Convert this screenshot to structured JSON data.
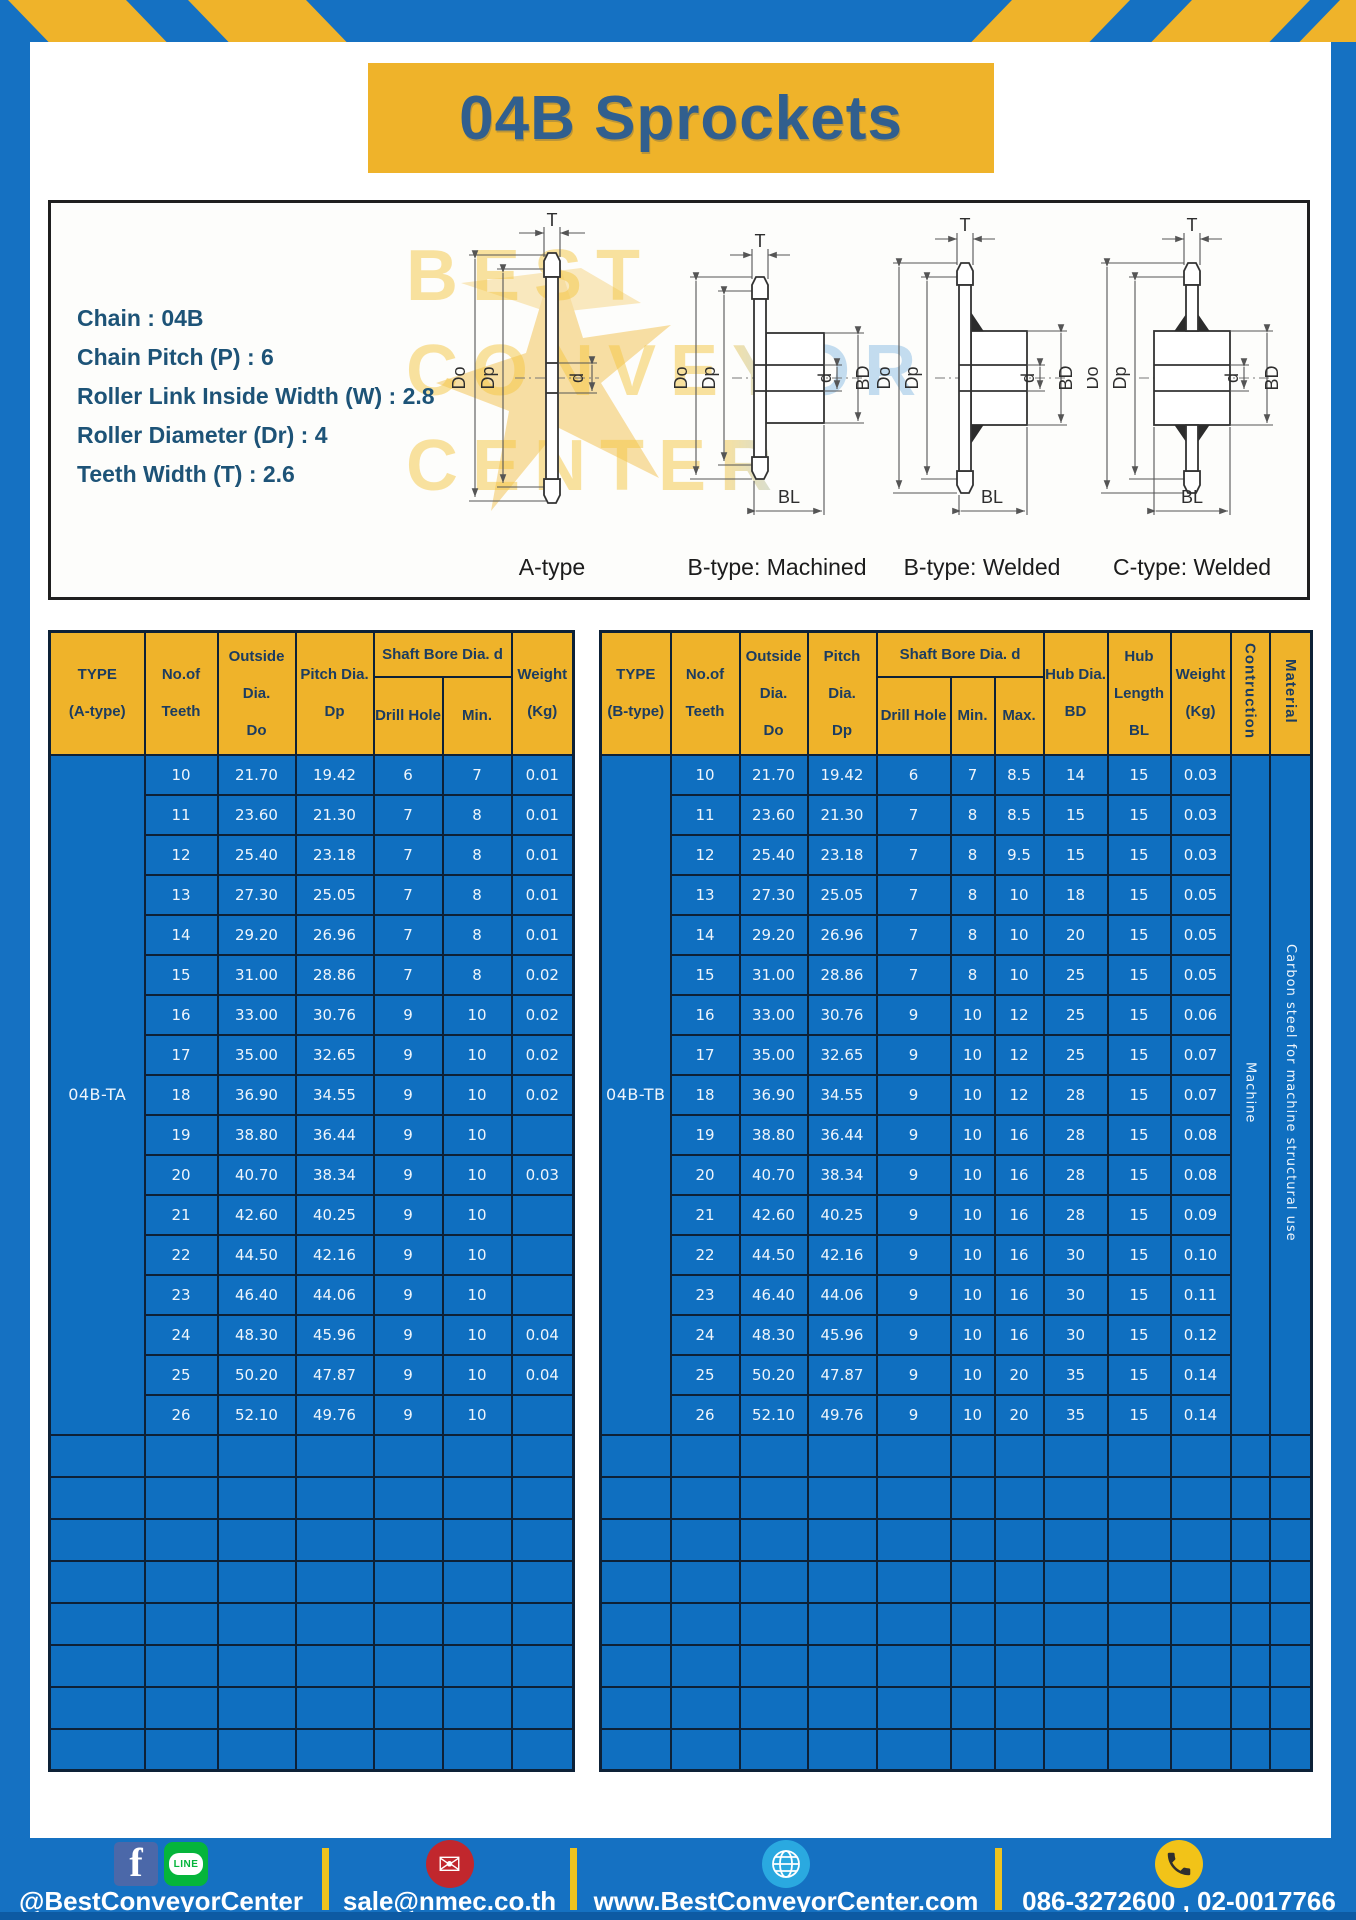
{
  "title": "04B Sprockets",
  "specs": [
    "Chain  :  04B",
    "Chain Pitch (P)  :  6",
    "Roller Link Inside Width (W)  :  2.8",
    "Roller Diameter (Dr)  :  4",
    "Teeth Width (T)  :  2.6"
  ],
  "diagrams": {
    "watermark_lines": [
      "BEST",
      "CONVEYOR",
      "CENTER"
    ],
    "captions": [
      "A-type",
      "B-type: Machined",
      "B-type: Welded",
      "C-type: Welded"
    ],
    "dim_labels": {
      "t": "T",
      "outer": "Do",
      "pitch": "Dp",
      "bore": "d",
      "hub": "BD",
      "hub_len": "BL"
    }
  },
  "table_a": {
    "header": {
      "type": [
        "TYPE",
        "(A-type)"
      ],
      "teeth": [
        "No.of",
        "Teeth"
      ],
      "outside": [
        "Outside",
        "Dia.",
        "Do"
      ],
      "pitch": [
        "Pitch Dia.",
        "Dp"
      ],
      "shaft_bore": "Shaft Bore Dia. d",
      "drill": "Drill Hole",
      "min": "Min.",
      "weight": [
        "Weight",
        "(Kg)"
      ]
    },
    "type_label": "04B-TA",
    "rows": [
      [
        "10",
        "21.70",
        "19.42",
        "6",
        "7",
        "0.01"
      ],
      [
        "11",
        "23.60",
        "21.30",
        "7",
        "8",
        "0.01"
      ],
      [
        "12",
        "25.40",
        "23.18",
        "7",
        "8",
        "0.01"
      ],
      [
        "13",
        "27.30",
        "25.05",
        "7",
        "8",
        "0.01"
      ],
      [
        "14",
        "29.20",
        "26.96",
        "7",
        "8",
        "0.01"
      ],
      [
        "15",
        "31.00",
        "28.86",
        "7",
        "8",
        "0.02"
      ],
      [
        "16",
        "33.00",
        "30.76",
        "9",
        "10",
        "0.02"
      ],
      [
        "17",
        "35.00",
        "32.65",
        "9",
        "10",
        "0.02"
      ],
      [
        "18",
        "36.90",
        "34.55",
        "9",
        "10",
        "0.02"
      ],
      [
        "19",
        "38.80",
        "36.44",
        "9",
        "10",
        ""
      ],
      [
        "20",
        "40.70",
        "38.34",
        "9",
        "10",
        "0.03"
      ],
      [
        "21",
        "42.60",
        "40.25",
        "9",
        "10",
        ""
      ],
      [
        "22",
        "44.50",
        "42.16",
        "9",
        "10",
        ""
      ],
      [
        "23",
        "46.40",
        "44.06",
        "9",
        "10",
        ""
      ],
      [
        "24",
        "48.30",
        "45.96",
        "9",
        "10",
        "0.04"
      ],
      [
        "25",
        "50.20",
        "47.87",
        "9",
        "10",
        "0.04"
      ],
      [
        "26",
        "52.10",
        "49.76",
        "9",
        "10",
        ""
      ]
    ],
    "empty_rows": 8
  },
  "table_b": {
    "header": {
      "type": [
        "TYPE",
        "(B-type)"
      ],
      "teeth": [
        "No.of",
        "Teeth"
      ],
      "outside": [
        "Outside",
        "Dia.",
        "Do"
      ],
      "pitch": [
        "Pitch Dia.",
        "Dp"
      ],
      "shaft_bore": "Shaft Bore Dia. d",
      "drill": "Drill Hole",
      "min": "Min.",
      "max": "Max.",
      "hub_dia": [
        "Hub Dia.",
        "BD"
      ],
      "hub_len": [
        "Hub",
        "Length",
        "BL"
      ],
      "weight": [
        "Weight",
        "(Kg)"
      ],
      "construction": "Contruction",
      "material": "Material"
    },
    "type_label": "04B-TB",
    "construction_value": "Machine",
    "material_value": "Carbon steel for machine structural use",
    "rows": [
      [
        "10",
        "21.70",
        "19.42",
        "6",
        "7",
        "8.5",
        "14",
        "15",
        "0.03"
      ],
      [
        "11",
        "23.60",
        "21.30",
        "7",
        "8",
        "8.5",
        "15",
        "15",
        "0.03"
      ],
      [
        "12",
        "25.40",
        "23.18",
        "7",
        "8",
        "9.5",
        "15",
        "15",
        "0.03"
      ],
      [
        "13",
        "27.30",
        "25.05",
        "7",
        "8",
        "10",
        "18",
        "15",
        "0.05"
      ],
      [
        "14",
        "29.20",
        "26.96",
        "7",
        "8",
        "10",
        "20",
        "15",
        "0.05"
      ],
      [
        "15",
        "31.00",
        "28.86",
        "7",
        "8",
        "10",
        "25",
        "15",
        "0.05"
      ],
      [
        "16",
        "33.00",
        "30.76",
        "9",
        "10",
        "12",
        "25",
        "15",
        "0.06"
      ],
      [
        "17",
        "35.00",
        "32.65",
        "9",
        "10",
        "12",
        "25",
        "15",
        "0.07"
      ],
      [
        "18",
        "36.90",
        "34.55",
        "9",
        "10",
        "12",
        "28",
        "15",
        "0.07"
      ],
      [
        "19",
        "38.80",
        "36.44",
        "9",
        "10",
        "16",
        "28",
        "15",
        "0.08"
      ],
      [
        "20",
        "40.70",
        "38.34",
        "9",
        "10",
        "16",
        "28",
        "15",
        "0.08"
      ],
      [
        "21",
        "42.60",
        "40.25",
        "9",
        "10",
        "16",
        "28",
        "15",
        "0.09"
      ],
      [
        "22",
        "44.50",
        "42.16",
        "9",
        "10",
        "16",
        "30",
        "15",
        "0.10"
      ],
      [
        "23",
        "46.40",
        "44.06",
        "9",
        "10",
        "16",
        "30",
        "15",
        "0.11"
      ],
      [
        "24",
        "48.30",
        "45.96",
        "9",
        "10",
        "16",
        "30",
        "15",
        "0.12"
      ],
      [
        "25",
        "50.20",
        "47.87",
        "9",
        "10",
        "20",
        "35",
        "15",
        "0.14"
      ],
      [
        "26",
        "52.10",
        "49.76",
        "9",
        "10",
        "20",
        "35",
        "15",
        "0.14"
      ]
    ],
    "empty_rows": 8
  },
  "footer": {
    "items": [
      {
        "icon": "facebook-line",
        "label": "@BestConveyorCenter"
      },
      {
        "icon": "email",
        "label": "sale@nmec.co.th"
      },
      {
        "icon": "globe",
        "label": "www.BestConveyorCenter.com"
      },
      {
        "icon": "phone",
        "label": "086-3272600 , 02-0017766"
      }
    ]
  },
  "colors": {
    "frame_blue": "#1571c2",
    "table_blue": "#0f6fc0",
    "accent_yellow": "#efb32a",
    "grid_line": "#0d2137",
    "header_text": "#1c3c60",
    "title_text": "#315f8e",
    "spec_text": "#1d5377",
    "footer_strip": "#0d5aa3"
  }
}
